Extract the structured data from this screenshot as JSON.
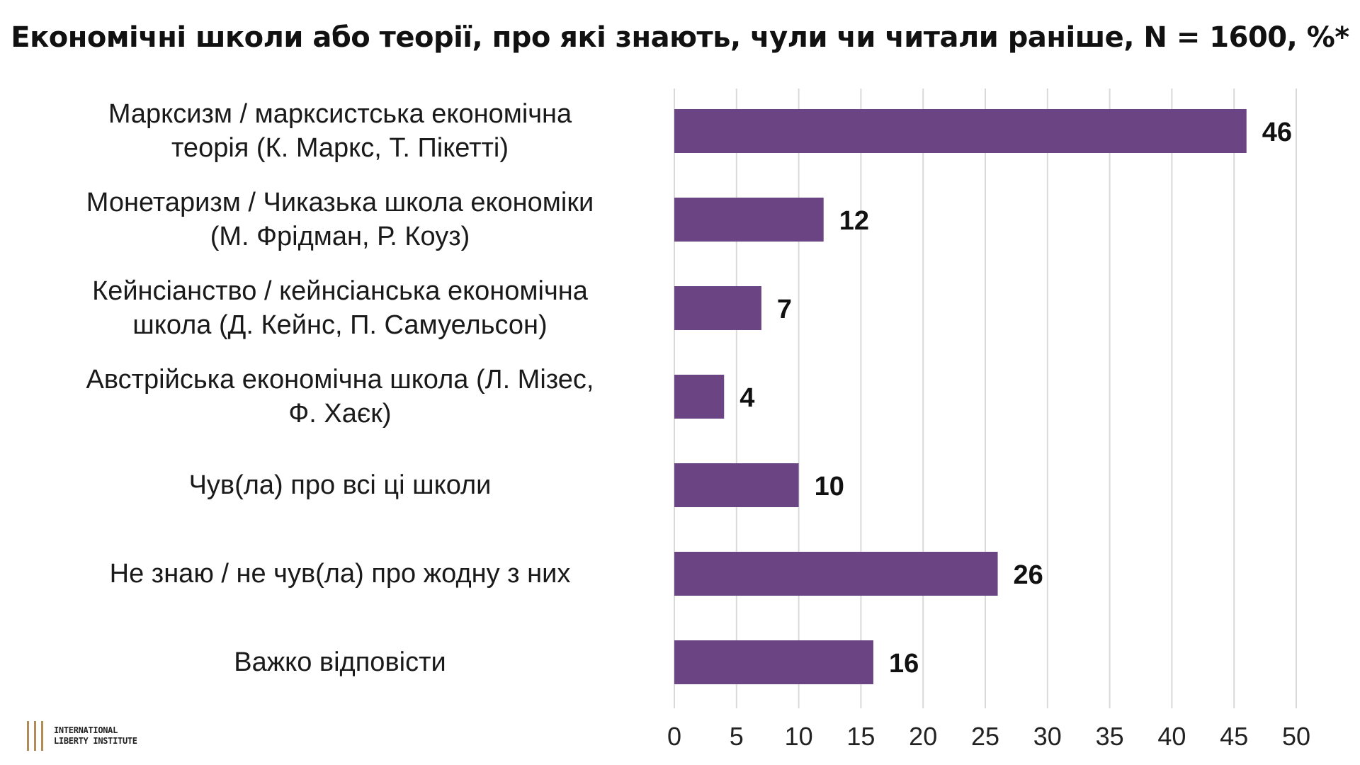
{
  "title": "Економічні школи або теорії, про які знають, чули чи читали раніше, N = 1600, %*",
  "logo": {
    "line1": "International",
    "line2": "Liberty Institute"
  },
  "colors": {
    "bar": "#6b4483",
    "grid": "#d9d9d9",
    "text": "#1a1a1a"
  },
  "chart_data": {
    "type": "bar",
    "orientation": "horizontal",
    "title": "Економічні школи або теорії, про які знають, чули чи читали раніше, N = 1600, %*",
    "categories": [
      [
        "Марксизм / марксистська економічна",
        "теорія (К. Маркс, Т. Пікетті)"
      ],
      [
        "Монетаризм / Чиказька школа економіки",
        "(М. Фрідман, Р. Коуз)"
      ],
      [
        "Кейнсіанство / кейнсіанська економічна",
        "школа (Д. Кейнс, П. Самуельсон)"
      ],
      [
        "Австрійська економічна школа (Л. Мізес,",
        "Ф. Хаєк)"
      ],
      [
        "Чув(ла) про всі ці школи"
      ],
      [
        "Не знаю / не чув(ла) про жодну з них"
      ],
      [
        "Важко відповісти"
      ]
    ],
    "values": [
      46,
      12,
      7,
      4,
      10,
      26,
      16
    ],
    "xlim": [
      0,
      50
    ],
    "xticks": [
      0,
      5,
      10,
      15,
      20,
      25,
      30,
      35,
      40,
      45,
      50
    ],
    "grid": "vertical",
    "data_labels": true
  }
}
